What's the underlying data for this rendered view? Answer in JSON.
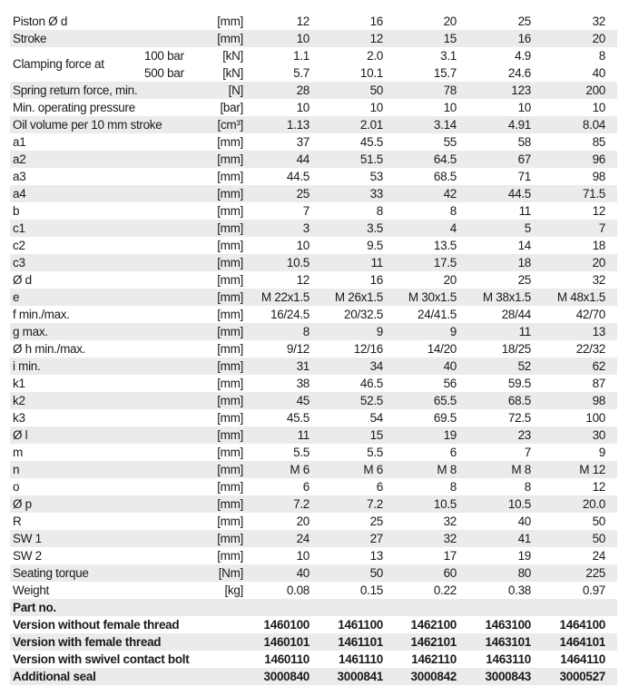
{
  "rows": [
    {
      "label": "Piston Ø d",
      "unit": "[mm]",
      "values": [
        "12",
        "16",
        "20",
        "25",
        "32"
      ]
    },
    {
      "label": "Stroke",
      "unit": "[mm]",
      "values": [
        "10",
        "12",
        "15",
        "16",
        "20"
      ]
    },
    {
      "label": "Clamping force at",
      "sub": [
        {
          "label": "100 bar",
          "unit": "[kN]",
          "values": [
            "1.1",
            "2.0",
            "3.1",
            "4.9",
            "8"
          ]
        },
        {
          "label": "500 bar",
          "unit": "[kN]",
          "values": [
            "5.7",
            "10.1",
            "15.7",
            "24.6",
            "40"
          ]
        }
      ]
    },
    {
      "label": "Spring return force, min.",
      "unit": "[N]",
      "values": [
        "28",
        "50",
        "78",
        "123",
        "200"
      ]
    },
    {
      "label": "Min. operating pressure",
      "unit": "[bar]",
      "values": [
        "10",
        "10",
        "10",
        "10",
        "10"
      ]
    },
    {
      "label": "Oil volume per 10 mm stroke",
      "unit": "[cm³]",
      "values": [
        "1.13",
        "2.01",
        "3.14",
        "4.91",
        "8.04"
      ]
    },
    {
      "label": "a1",
      "unit": "[mm]",
      "values": [
        "37",
        "45.5",
        "55",
        "58",
        "85"
      ]
    },
    {
      "label": "a2",
      "unit": "[mm]",
      "values": [
        "44",
        "51.5",
        "64.5",
        "67",
        "96"
      ]
    },
    {
      "label": "a3",
      "unit": "[mm]",
      "values": [
        "44.5",
        "53",
        "68.5",
        "71",
        "98"
      ]
    },
    {
      "label": "a4",
      "unit": "[mm]",
      "values": [
        "25",
        "33",
        "42",
        "44.5",
        "71.5"
      ]
    },
    {
      "label": "b",
      "unit": "[mm]",
      "values": [
        "7",
        "8",
        "8",
        "11",
        "12"
      ]
    },
    {
      "label": "c1",
      "unit": "[mm]",
      "values": [
        "3",
        "3.5",
        "4",
        "5",
        "7"
      ]
    },
    {
      "label": "c2",
      "unit": "[mm]",
      "values": [
        "10",
        "9.5",
        "13.5",
        "14",
        "18"
      ]
    },
    {
      "label": "c3",
      "unit": "[mm]",
      "values": [
        "10.5",
        "11",
        "17.5",
        "18",
        "20"
      ]
    },
    {
      "label": "Ø d",
      "unit": "[mm]",
      "values": [
        "12",
        "16",
        "20",
        "25",
        "32"
      ]
    },
    {
      "label": "e",
      "unit": "[mm]",
      "values": [
        "M 22x1.5",
        "M 26x1.5",
        "M 30x1.5",
        "M 38x1.5",
        "M 48x1.5"
      ]
    },
    {
      "label": "f min./max.",
      "unit": "[mm]",
      "values": [
        "16/24.5",
        "20/32.5",
        "24/41.5",
        "28/44",
        "42/70"
      ]
    },
    {
      "label": "g max.",
      "unit": "[mm]",
      "values": [
        "8",
        "9",
        "9",
        "11",
        "13"
      ]
    },
    {
      "label": "Ø h min./max.",
      "unit": "[mm]",
      "values": [
        "9/12",
        "12/16",
        "14/20",
        "18/25",
        "22/32"
      ]
    },
    {
      "label": "i min.",
      "unit": "[mm]",
      "values": [
        "31",
        "34",
        "40",
        "52",
        "62"
      ]
    },
    {
      "label": "k1",
      "unit": "[mm]",
      "values": [
        "38",
        "46.5",
        "56",
        "59.5",
        "87"
      ]
    },
    {
      "label": "k2",
      "unit": "[mm]",
      "values": [
        "45",
        "52.5",
        "65.5",
        "68.5",
        "98"
      ]
    },
    {
      "label": "k3",
      "unit": "[mm]",
      "values": [
        "45.5",
        "54",
        "69.5",
        "72.5",
        "100"
      ]
    },
    {
      "label": "Ø l",
      "unit": "[mm]",
      "values": [
        "11",
        "15",
        "19",
        "23",
        "30"
      ]
    },
    {
      "label": "m",
      "unit": "[mm]",
      "values": [
        "5.5",
        "5.5",
        "6",
        "7",
        "9"
      ]
    },
    {
      "label": "n",
      "unit": "[mm]",
      "values": [
        "M 6",
        "M 6",
        "M 8",
        "M 8",
        "M 12"
      ]
    },
    {
      "label": "o",
      "unit": "[mm]",
      "values": [
        "6",
        "6",
        "8",
        "8",
        "12"
      ]
    },
    {
      "label": "Ø p",
      "unit": "[mm]",
      "values": [
        "7.2",
        "7.2",
        "10.5",
        "10.5",
        "20.0"
      ]
    },
    {
      "label": "R",
      "unit": "[mm]",
      "values": [
        "20",
        "25",
        "32",
        "40",
        "50"
      ]
    },
    {
      "label": "SW 1",
      "unit": "[mm]",
      "values": [
        "24",
        "27",
        "32",
        "41",
        "50"
      ]
    },
    {
      "label": "SW 2",
      "unit": "[mm]",
      "values": [
        "10",
        "13",
        "17",
        "19",
        "24"
      ]
    },
    {
      "label": "Seating torque",
      "unit": "[Nm]",
      "values": [
        "40",
        "50",
        "60",
        "80",
        "225"
      ]
    },
    {
      "label": "Weight",
      "unit": "[kg]",
      "values": [
        "0.08",
        "0.15",
        "0.22",
        "0.38",
        "0.97"
      ]
    },
    {
      "label": "Part no.",
      "bold": true,
      "values": []
    },
    {
      "label": "Version without female thread",
      "bold": true,
      "values": [
        "1460100",
        "1461100",
        "1462100",
        "1463100",
        "1464100"
      ]
    },
    {
      "label": "Version with female thread",
      "bold": true,
      "values": [
        "1460101",
        "1461101",
        "1462101",
        "1463101",
        "1464101"
      ]
    },
    {
      "label": "Version with swivel contact bolt",
      "bold": true,
      "values": [
        "1460110",
        "1461110",
        "1462110",
        "1463110",
        "1464110"
      ]
    },
    {
      "label": "Additional seal",
      "bold": true,
      "values": [
        "3000840",
        "3000841",
        "3000842",
        "3000843",
        "3000527"
      ]
    }
  ]
}
